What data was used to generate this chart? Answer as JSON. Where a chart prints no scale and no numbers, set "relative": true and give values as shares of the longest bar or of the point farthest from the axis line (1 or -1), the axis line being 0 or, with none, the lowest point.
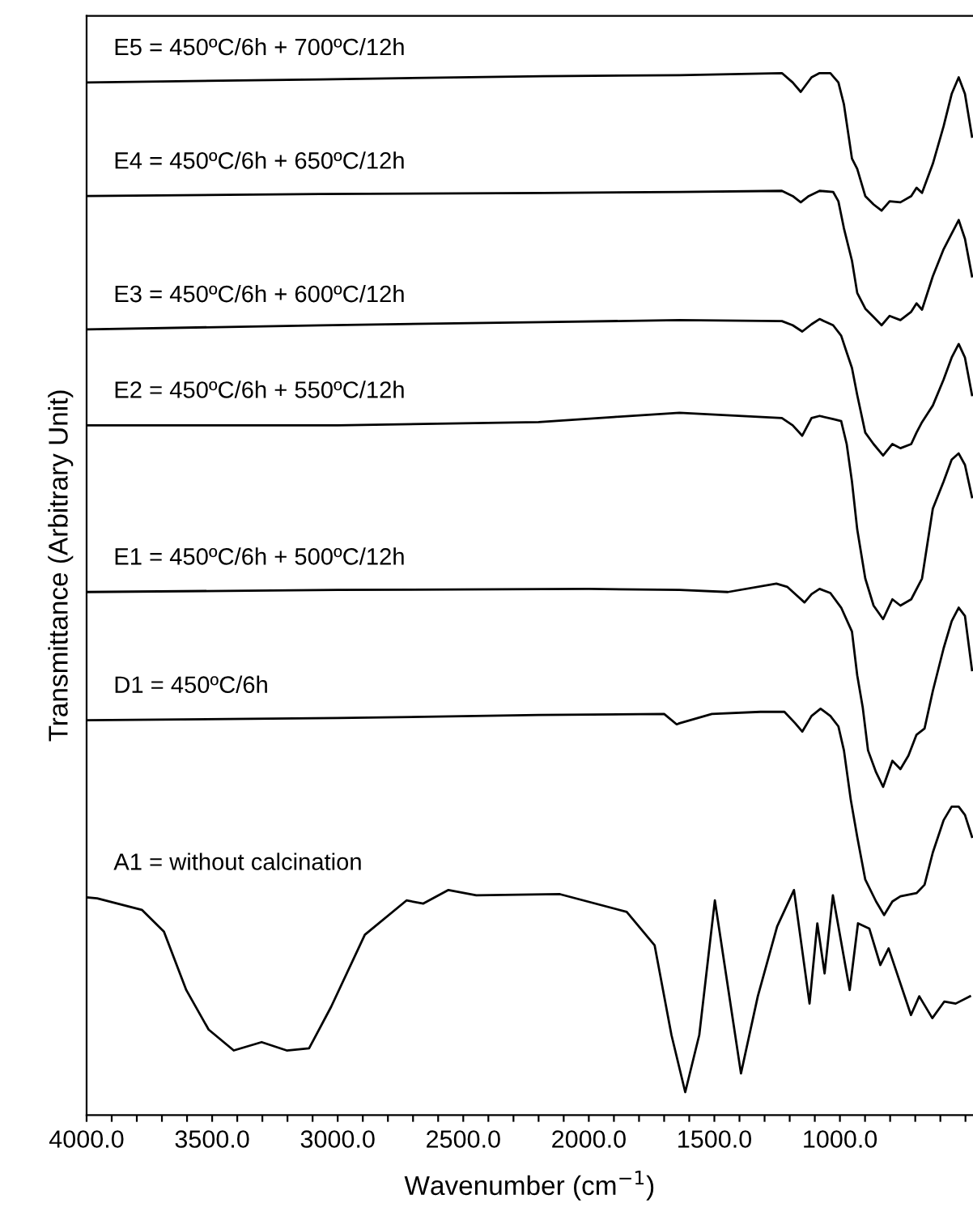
{
  "chart_data": {
    "type": "line",
    "relative": true,
    "xlabel": "Wavenumber (cm$^{−1}$)",
    "ylabel": "Transmittance (Arbitrary Unit)",
    "xlim": [
      4000,
      470
    ],
    "xticks": [
      {
        "value": 4000,
        "label": "4000.0"
      },
      {
        "value": 3900,
        "label": null
      },
      {
        "value": 3800,
        "label": null
      },
      {
        "value": 3700,
        "label": null
      },
      {
        "value": 3600,
        "label": null
      },
      {
        "value": 3500,
        "label": "3500.0"
      },
      {
        "value": 3400,
        "label": null
      },
      {
        "value": 3300,
        "label": null
      },
      {
        "value": 3200,
        "label": null
      },
      {
        "value": 3100,
        "label": null
      },
      {
        "value": 3000,
        "label": "3000.0"
      },
      {
        "value": 2900,
        "label": null
      },
      {
        "value": 2800,
        "label": null
      },
      {
        "value": 2700,
        "label": null
      },
      {
        "value": 2600,
        "label": null
      },
      {
        "value": 2500,
        "label": "2500.0"
      },
      {
        "value": 2400,
        "label": null
      },
      {
        "value": 2300,
        "label": null
      },
      {
        "value": 2200,
        "label": null
      },
      {
        "value": 2100,
        "label": null
      },
      {
        "value": 2000,
        "label": "2000.0"
      },
      {
        "value": 1900,
        "label": null
      },
      {
        "value": 1800,
        "label": null
      },
      {
        "value": 1700,
        "label": null
      },
      {
        "value": 1600,
        "label": null
      },
      {
        "value": 1500,
        "label": "1500.0"
      },
      {
        "value": 1400,
        "label": null
      },
      {
        "value": 1300,
        "label": null
      },
      {
        "value": 1200,
        "label": null
      },
      {
        "value": 1100,
        "label": null
      },
      {
        "value": 1000,
        "label": "1000.0"
      },
      {
        "value": 900,
        "label": null
      },
      {
        "value": 800,
        "label": null
      },
      {
        "value": 700,
        "label": null
      },
      {
        "value": 600,
        "label": null
      },
      {
        "value": 500,
        "label": null
      }
    ],
    "tick_labels": "x",
    "grid": false,
    "legend": false,
    "marker": "none",
    "line_style": "solid",
    "series": [
      {
        "name": "E5 = 450ºC/6h + 700ºC/12h",
        "color": "#000000",
        "x": [
          4000,
          3070,
          2182,
          1639,
          1231,
          1188,
          1156,
          1113,
          1081,
          1038,
          1006,
          984,
          952,
          931,
          899,
          866,
          834,
          802,
          759,
          716,
          695,
          673,
          630,
          587,
          555,
          527,
          502,
          474
        ],
        "values": [
          0.991,
          0.994,
          0.997,
          0.998,
          1,
          0.991,
          0.982,
          0.996,
          1,
          1,
          0.991,
          0.97,
          0.918,
          0.908,
          0.882,
          0.874,
          0.868,
          0.877,
          0.876,
          0.882,
          0.89,
          0.885,
          0.913,
          0.949,
          0.98,
          0.996,
          0.98,
          0.939
        ]
      },
      {
        "name": "E4 = 450ºC/6h + 650ºC/12h",
        "color": "#000000",
        "x": [
          4000,
          3070,
          2182,
          1639,
          1231,
          1188,
          1156,
          1124,
          1081,
          1027,
          1006,
          984,
          952,
          931,
          899,
          866,
          834,
          802,
          759,
          716,
          695,
          673,
          630,
          587,
          555,
          527,
          502,
          474
        ],
        "values": [
          0.882,
          0.884,
          0.885,
          0.886,
          0.887,
          0.882,
          0.876,
          0.882,
          0.887,
          0.886,
          0.877,
          0.851,
          0.82,
          0.789,
          0.774,
          0.766,
          0.758,
          0.767,
          0.763,
          0.771,
          0.779,
          0.773,
          0.805,
          0.831,
          0.846,
          0.859,
          0.841,
          0.805
        ]
      },
      {
        "name": "E3 = 450ºC/6h + 600ºC/12h",
        "color": "#000000",
        "x": [
          4000,
          3070,
          2182,
          1639,
          1231,
          1188,
          1150,
          1113,
          1081,
          1027,
          995,
          973,
          952,
          931,
          899,
          866,
          828,
          791,
          759,
          716,
          695,
          673,
          630,
          587,
          555,
          527,
          502,
          474
        ],
        "values": [
          0.754,
          0.758,
          0.761,
          0.763,
          0.762,
          0.758,
          0.752,
          0.759,
          0.764,
          0.758,
          0.748,
          0.732,
          0.717,
          0.691,
          0.655,
          0.644,
          0.633,
          0.644,
          0.64,
          0.644,
          0.655,
          0.665,
          0.681,
          0.706,
          0.727,
          0.74,
          0.727,
          0.691
        ]
      },
      {
        "name": "E2 = 450ºC/6h + 550ºC/12h",
        "color": "#000000",
        "x": [
          4000,
          3000,
          2200,
          1900,
          1639,
          1231,
          1188,
          1150,
          1113,
          1081,
          1027,
          995,
          973,
          952,
          931,
          899,
          866,
          828,
          791,
          759,
          716,
          673,
          630,
          587,
          555,
          527,
          502,
          474
        ],
        "values": [
          0.662,
          0.662,
          0.665,
          0.67,
          0.674,
          0.669,
          0.662,
          0.652,
          0.669,
          0.671,
          0.668,
          0.666,
          0.644,
          0.608,
          0.562,
          0.515,
          0.489,
          0.476,
          0.495,
          0.489,
          0.495,
          0.515,
          0.582,
          0.608,
          0.629,
          0.635,
          0.624,
          0.593
        ]
      },
      {
        "name": "E1 = 450ºC/6h + 500ºC/12h",
        "color": "#000000",
        "x": [
          4000,
          3000,
          2000,
          1639,
          1446,
          1253,
          1210,
          1178,
          1141,
          1113,
          1081,
          1038,
          995,
          952,
          931,
          909,
          888,
          856,
          828,
          791,
          759,
          727,
          695,
          663,
          630,
          587,
          555,
          527,
          502,
          474
        ],
        "values": [
          0.502,
          0.504,
          0.505,
          0.504,
          0.502,
          0.51,
          0.507,
          0.5,
          0.492,
          0.5,
          0.505,
          0.501,
          0.487,
          0.464,
          0.422,
          0.391,
          0.35,
          0.329,
          0.315,
          0.34,
          0.332,
          0.345,
          0.365,
          0.371,
          0.407,
          0.448,
          0.474,
          0.487,
          0.479,
          0.427
        ]
      },
      {
        "name": "D1 = 450ºC/6h",
        "color": "#000000",
        "x": [
          4000,
          3000,
          2200,
          1700,
          1650,
          1639,
          1510,
          1317,
          1221,
          1178,
          1150,
          1113,
          1077,
          1038,
          1006,
          984,
          957,
          931,
          899,
          856,
          824,
          791,
          759,
          695,
          663,
          630,
          587,
          555,
          527,
          502,
          474
        ],
        "values": [
          0.379,
          0.381,
          0.384,
          0.385,
          0.375,
          0.376,
          0.385,
          0.387,
          0.387,
          0.376,
          0.368,
          0.383,
          0.39,
          0.383,
          0.373,
          0.35,
          0.303,
          0.267,
          0.226,
          0.205,
          0.192,
          0.205,
          0.21,
          0.213,
          0.221,
          0.252,
          0.283,
          0.296,
          0.296,
          0.288,
          0.267
        ]
      },
      {
        "name": "A1 = without calcination",
        "color": "#000000",
        "x": [
          4000,
          3958,
          3780,
          3692,
          3603,
          3514,
          3414,
          3303,
          3203,
          3114,
          3026,
          2892,
          2726,
          2659,
          2559,
          2448,
          2115,
          1849,
          1738,
          1671,
          1616,
          1560,
          1498,
          1394,
          1327,
          1250,
          1183,
          1121,
          1090,
          1061,
          1028,
          961,
          928,
          883,
          839,
          806,
          717,
          684,
          632,
          584,
          539,
          482
        ],
        "values": [
          0.209,
          0.208,
          0.197,
          0.176,
          0.12,
          0.082,
          0.062,
          0.07,
          0.062,
          0.064,
          0.104,
          0.173,
          0.206,
          0.203,
          0.216,
          0.211,
          0.212,
          0.195,
          0.163,
          0.077,
          0.022,
          0.077,
          0.206,
          0.04,
          0.114,
          0.181,
          0.216,
          0.107,
          0.184,
          0.136,
          0.211,
          0.12,
          0.184,
          0.179,
          0.144,
          0.16,
          0.096,
          0.114,
          0.093,
          0.109,
          0.107,
          0.114
        ]
      }
    ]
  }
}
